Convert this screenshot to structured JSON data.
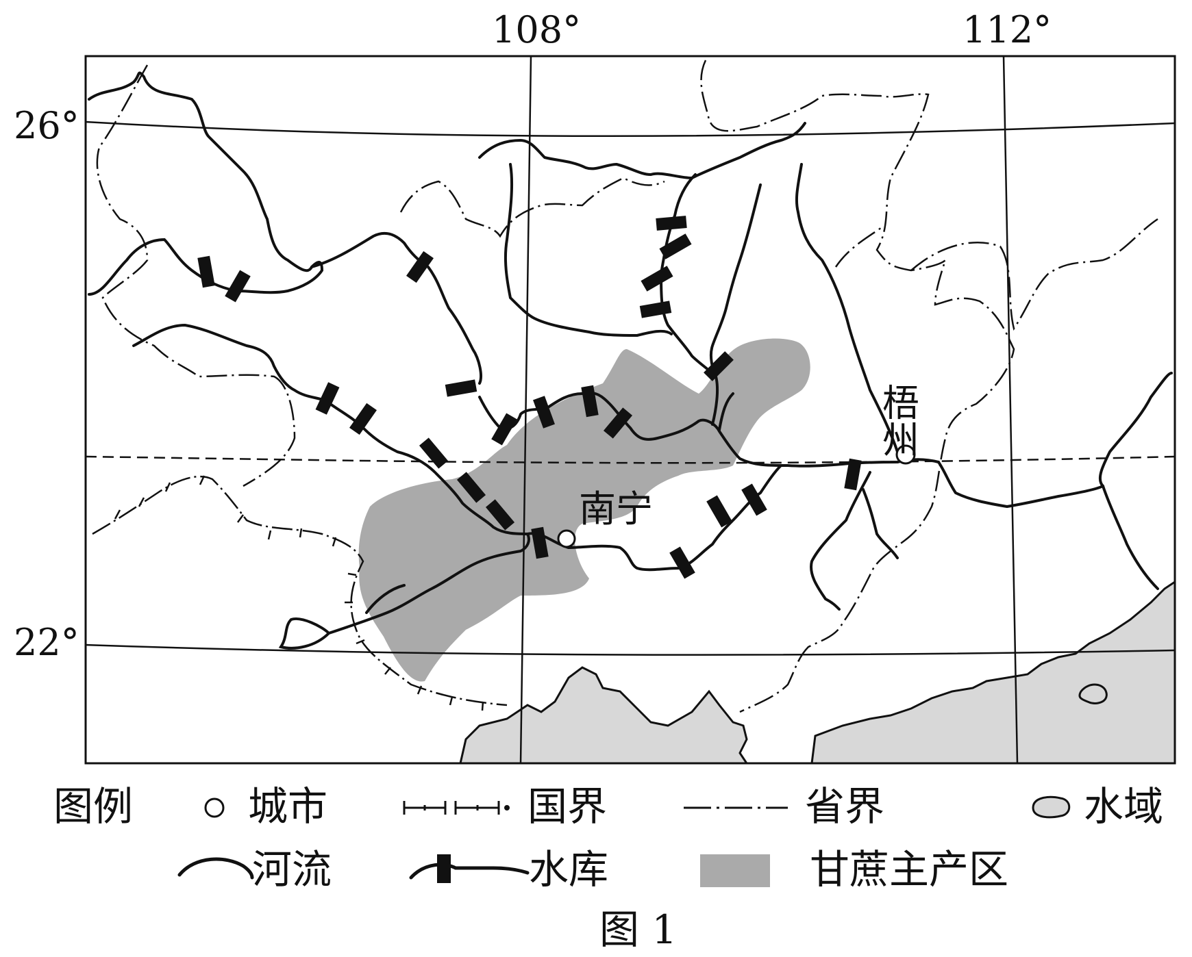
{
  "map": {
    "longitude_labels": [
      "108°",
      "112°"
    ],
    "latitude_labels": [
      "26°",
      "22°"
    ],
    "cities": [
      {
        "name": "南宁"
      },
      {
        "name": "梧州"
      }
    ]
  },
  "legend": {
    "title": "图例",
    "items": {
      "city": "城市",
      "national_border": "国界",
      "provincial_border": "省界",
      "water": "水域",
      "river": "河流",
      "reservoir": "水库",
      "sugarcane": "甘蔗主产区"
    }
  },
  "caption": "图 1",
  "colors": {
    "sugarcane_area": "#aaaaaa",
    "water_area": "#d8d8d8",
    "ink": "#111111"
  }
}
